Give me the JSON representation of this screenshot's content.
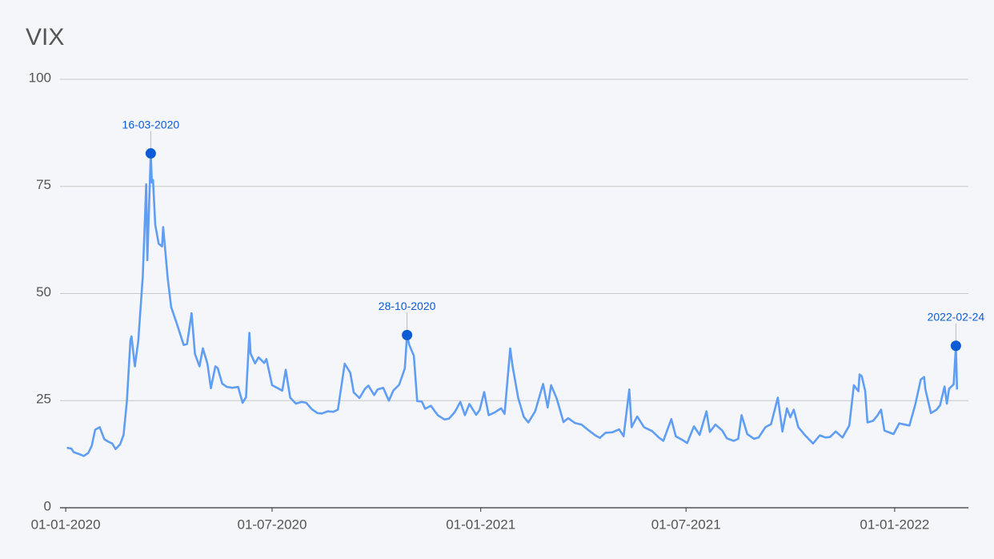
{
  "chart_data": {
    "type": "line",
    "title": "VIX",
    "color": "#5f9ef3",
    "highlight_color": "#0b5cd5",
    "x": [
      "02-01-2020",
      "06-01-2020",
      "08-01-2020",
      "13-01-2020",
      "17-01-2020",
      "21-01-2020",
      "24-01-2020",
      "27-01-2020",
      "31-01-2020",
      "04-02-2020",
      "07-02-2020",
      "11-02-2020",
      "14-02-2020",
      "18-02-2020",
      "21-02-2020",
      "24-02-2020",
      "27-02-2020",
      "28-02-2020",
      "02-03-2020",
      "05-03-2020",
      "09-03-2020",
      "12-03-2020",
      "13-03-2020",
      "16-03-2020",
      "17-03-2020",
      "18-03-2020",
      "20-03-2020",
      "23-03-2020",
      "26-03-2020",
      "27-03-2020",
      "31-03-2020",
      "03-04-2020",
      "08-04-2020",
      "14-04-2020",
      "17-04-2020",
      "21-04-2020",
      "24-04-2020",
      "28-04-2020",
      "01-05-2020",
      "05-05-2020",
      "08-05-2020",
      "12-05-2020",
      "14-05-2020",
      "18-05-2020",
      "22-05-2020",
      "27-05-2020",
      "01-06-2020",
      "05-06-2020",
      "08-06-2020",
      "11-06-2020",
      "12-06-2020",
      "16-06-2020",
      "19-06-2020",
      "24-06-2020",
      "26-06-2020",
      "01-07-2020",
      "06-07-2020",
      "10-07-2020",
      "13-07-2020",
      "17-07-2020",
      "22-07-2020",
      "27-07-2020",
      "31-07-2020",
      "05-08-2020",
      "10-08-2020",
      "14-08-2020",
      "19-08-2020",
      "24-08-2020",
      "28-08-2020",
      "03-09-2020",
      "08-09-2020",
      "11-09-2020",
      "16-09-2020",
      "21-09-2020",
      "24-09-2020",
      "29-09-2020",
      "02-10-2020",
      "07-10-2020",
      "12-10-2020",
      "16-10-2020",
      "21-10-2020",
      "26-10-2020",
      "28-10-2020",
      "30-10-2020",
      "03-11-2020",
      "06-11-2020",
      "10-11-2020",
      "13-11-2020",
      "18-11-2020",
      "24-11-2020",
      "30-11-2020",
      "04-12-2020",
      "09-12-2020",
      "14-12-2020",
      "18-12-2020",
      "22-12-2020",
      "28-12-2020",
      "31-12-2020",
      "04-01-2021",
      "08-01-2021",
      "13-01-2021",
      "19-01-2021",
      "22-01-2021",
      "27-01-2021",
      "29-01-2021",
      "03-02-2021",
      "08-02-2021",
      "12-02-2021",
      "18-02-2021",
      "25-02-2021",
      "01-03-2021",
      "04-03-2021",
      "09-03-2021",
      "15-03-2021",
      "19-03-2021",
      "25-03-2021",
      "31-03-2021",
      "06-04-2021",
      "12-04-2021",
      "16-04-2021",
      "21-04-2021",
      "27-04-2021",
      "03-05-2021",
      "07-05-2021",
      "12-05-2021",
      "14-05-2021",
      "19-05-2021",
      "25-05-2021",
      "01-06-2021",
      "07-06-2021",
      "11-06-2021",
      "18-06-2021",
      "22-06-2021",
      "28-06-2021",
      "02-07-2021",
      "08-07-2021",
      "13-07-2021",
      "19-07-2021",
      "22-07-2021",
      "27-07-2021",
      "02-08-2021",
      "06-08-2021",
      "12-08-2021",
      "16-08-2021",
      "19-08-2021",
      "24-08-2021",
      "30-08-2021",
      "03-09-2021",
      "09-09-2021",
      "14-09-2021",
      "20-09-2021",
      "24-09-2021",
      "28-09-2021",
      "01-10-2021",
      "04-10-2021",
      "08-10-2021",
      "14-10-2021",
      "21-10-2021",
      "27-10-2021",
      "01-11-2021",
      "05-11-2021",
      "10-11-2021",
      "16-11-2021",
      "22-11-2021",
      "26-11-2021",
      "30-11-2021",
      "01-12-2021",
      "03-12-2021",
      "06-12-2021",
      "08-12-2021",
      "13-12-2021",
      "17-12-2021",
      "20-12-2021",
      "23-12-2021",
      "28-12-2021",
      "31-12-2021",
      "05-01-2022",
      "10-01-2022",
      "14-01-2022",
      "19-01-2022",
      "24-01-2022",
      "27-01-2022",
      "28-01-2022",
      "02-02-2022",
      "07-02-2022",
      "10-02-2022",
      "14-02-2022",
      "16-02-2022",
      "18-02-2022",
      "22-02-2022",
      "24-02-2022",
      "25-02-2022"
    ],
    "values": [
      14,
      13.8,
      13,
      12.5,
      12.1,
      12.8,
      14.5,
      18.2,
      18.8,
      16,
      15.5,
      15,
      13.7,
      14.8,
      17,
      25,
      39,
      40,
      33,
      39,
      54,
      75.5,
      57.8,
      82.7,
      75.9,
      76.5,
      66,
      61.6,
      61,
      65.5,
      53.5,
      46.8,
      43,
      38,
      38.2,
      45.4,
      35.9,
      33,
      37.2,
      33.6,
      27.9,
      33,
      32.6,
      29,
      28.2,
      28,
      28.2,
      24.5,
      25.8,
      40.8,
      36,
      33.7,
      35.1,
      33.8,
      34.7,
      28.6,
      27.9,
      27.3,
      32.2,
      25.7,
      24.3,
      24.7,
      24.5,
      23,
      22.1,
      22,
      22.5,
      22.4,
      22.9,
      33.6,
      31.5,
      26.9,
      25.6,
      27.8,
      28.5,
      26.3,
      27.6,
      28,
      25,
      27.4,
      28.7,
      32.5,
      40.3,
      38,
      35.5,
      24.9,
      24.8,
      23.1,
      23.8,
      21.6,
      20.6,
      20.8,
      22.3,
      24.7,
      21.6,
      24.2,
      21.7,
      22.8,
      27,
      21.6,
      22.2,
      23.2,
      21.9,
      37.2,
      33.1,
      25.6,
      21.2,
      19.9,
      22.5,
      28.9,
      23.4,
      28.6,
      25.5,
      20,
      20.9,
      19.8,
      19.4,
      18.1,
      16.9,
      16.3,
      17.5,
      17.6,
      18.3,
      16.7,
      27.6,
      18.8,
      21.3,
      18.8,
      17.9,
      16.4,
      15.6,
      20.7,
      16.7,
      15.8,
      15.1,
      19,
      17,
      22.5,
      17.7,
      19.4,
      18,
      16.2,
      15.6,
      16.1,
      21.6,
      17.2,
      16.1,
      16.4,
      18.8,
      19.5,
      25.7,
      17.8,
      23.2,
      21.1,
      22.9,
      18.8,
      16.9,
      15,
      16.9,
      16.4,
      16.5,
      17.8,
      16.4,
      19.2,
      28.6,
      27.2,
      31.1,
      30.7,
      27.2,
      19.9,
      20.3,
      21.6,
      22.9,
      18,
      17.5,
      17.2,
      19.7,
      19.4,
      19.2,
      23.9,
      29.9,
      30.5,
      27.7,
      22.1,
      22.9,
      23.9,
      28.3,
      24.3,
      27.8,
      28.8,
      37.8,
      27.6
    ],
    "highlights": [
      {
        "x": "16-03-2020",
        "value": 82.7
      },
      {
        "x": "28-10-2020",
        "value": 40.3
      },
      {
        "x": "2022-02-24",
        "value": 37.8
      }
    ],
    "xlim": [
      "27-12-2019",
      "07-03-2022"
    ],
    "xticks": [
      "01-01-2020",
      "01-07-2020",
      "01-01-2021",
      "01-07-2021",
      "01-01-2022"
    ],
    "ylim": [
      0,
      100
    ],
    "yticks": [
      0,
      25,
      50,
      75,
      100
    ],
    "grid": true
  }
}
